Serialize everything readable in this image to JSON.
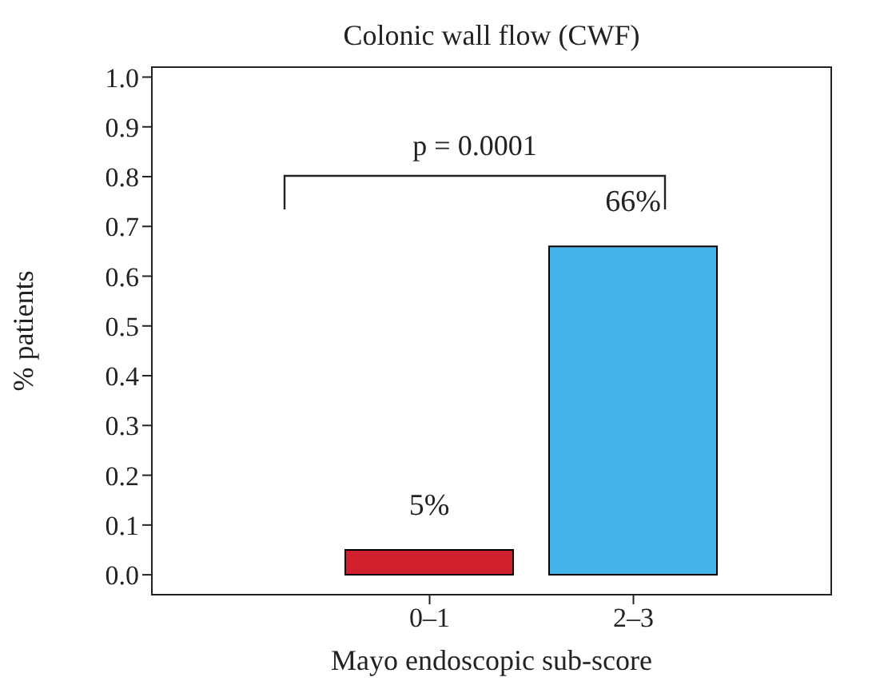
{
  "chart_data": {
    "type": "bar",
    "title": "Colonic wall flow (CWF)",
    "xlabel": "Mayo endoscopic sub-score",
    "ylabel": "% patients",
    "categories": [
      "0–1",
      "2–3"
    ],
    "values": [
      0.05,
      0.66
    ],
    "colors": [
      "#d0202e",
      "#45b4e8"
    ],
    "value_labels": [
      "5%",
      "66%"
    ],
    "ylim": [
      -0.04,
      1.02
    ],
    "yticks": [
      {
        "value": 0,
        "label": "0.0"
      },
      {
        "value": 0.1,
        "label": "0.1"
      },
      {
        "value": 0.2,
        "label": "0.2"
      },
      {
        "value": 0.3,
        "label": "0.3"
      },
      {
        "value": 0.4,
        "label": "0.4"
      },
      {
        "value": 0.5,
        "label": "0.5"
      },
      {
        "value": 0.6,
        "label": "0.6"
      },
      {
        "value": 0.7,
        "label": "0.7"
      },
      {
        "value": 0.8,
        "label": "0.8"
      },
      {
        "value": 0.9,
        "label": "0.9"
      },
      {
        "value": 1,
        "label": "1.0"
      }
    ],
    "annotations": [
      "p = 0.0001"
    ],
    "grid": false,
    "legend": false
  }
}
